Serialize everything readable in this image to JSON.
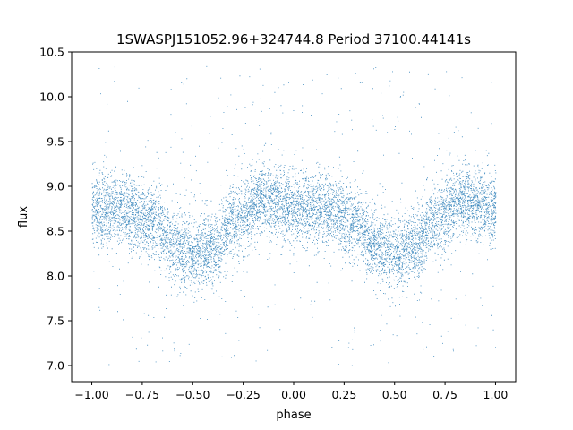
{
  "chart_data": {
    "type": "scatter",
    "title": "1SWASPJ151052.96+324744.8 Period 37100.44141s",
    "xlabel": "phase",
    "ylabel": "flux",
    "xlim": [
      -1.1,
      1.1
    ],
    "ylim": [
      6.82,
      10.5
    ],
    "xticks": [
      -1.0,
      -0.75,
      -0.5,
      -0.25,
      0.0,
      0.25,
      0.5,
      0.75,
      1.0
    ],
    "xtick_labels": [
      "−1.00",
      "−0.75",
      "−0.50",
      "−0.25",
      "0.00",
      "0.25",
      "0.50",
      "0.75",
      "1.00"
    ],
    "yticks": [
      7.0,
      7.5,
      8.0,
      8.5,
      9.0,
      9.5,
      10.0,
      10.5
    ],
    "ytick_labels": [
      "7.0",
      "7.5",
      "8.0",
      "8.5",
      "9.0",
      "9.5",
      "10.0",
      "10.5"
    ],
    "grid": false,
    "marker_color": "#1f77b4",
    "phase_range": [
      -1.0,
      1.0
    ],
    "light_curve_model": {
      "description_of_trend": "double-humped periodic light curve; maxima near phase -0.9, -0.15, 0.1, 0.85; minima near phase -0.5 and 0.5",
      "key_points": [
        {
          "x": -1.0,
          "y": 8.72
        },
        {
          "x": -0.85,
          "y": 8.75
        },
        {
          "x": -0.7,
          "y": 8.62
        },
        {
          "x": -0.6,
          "y": 8.35
        },
        {
          "x": -0.5,
          "y": 8.22
        },
        {
          "x": -0.4,
          "y": 8.32
        },
        {
          "x": -0.3,
          "y": 8.62
        },
        {
          "x": -0.15,
          "y": 8.85
        },
        {
          "x": 0.0,
          "y": 8.78
        },
        {
          "x": 0.15,
          "y": 8.75
        },
        {
          "x": 0.3,
          "y": 8.62
        },
        {
          "x": 0.4,
          "y": 8.35
        },
        {
          "x": 0.5,
          "y": 8.22
        },
        {
          "x": 0.6,
          "y": 8.35
        },
        {
          "x": 0.7,
          "y": 8.62
        },
        {
          "x": 0.85,
          "y": 8.85
        },
        {
          "x": 1.0,
          "y": 8.75
        }
      ],
      "scatter_sigma": 0.2,
      "outlier_range": [
        7.0,
        10.35
      ]
    }
  }
}
